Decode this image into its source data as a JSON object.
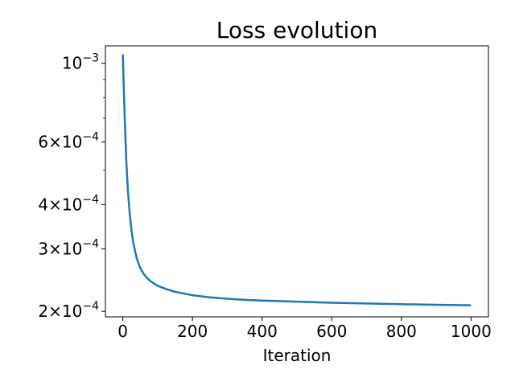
{
  "chart_data": {
    "type": "line",
    "title": "Loss evolution",
    "xlabel": "Iteration",
    "ylabel": "",
    "x_scale": "linear",
    "y_scale": "log",
    "xlim": [
      -50,
      1050
    ],
    "ylim": [
      0.000193,
      0.00112
    ],
    "grid": false,
    "x_ticks": [
      {
        "value": 0,
        "label": "0"
      },
      {
        "value": 200,
        "label": "200"
      },
      {
        "value": 400,
        "label": "400"
      },
      {
        "value": 600,
        "label": "600"
      },
      {
        "value": 800,
        "label": "800"
      },
      {
        "value": 1000,
        "label": "1000"
      }
    ],
    "y_ticks": [
      {
        "value": 0.0002,
        "mant": "2",
        "exp": "−4"
      },
      {
        "value": 0.0003,
        "mant": "3",
        "exp": "−4"
      },
      {
        "value": 0.0004,
        "mant": "4",
        "exp": "−4"
      },
      {
        "value": 0.0006,
        "mant": "6",
        "exp": "−4"
      },
      {
        "value": 0.001,
        "mant": "",
        "exp": "−3"
      }
    ],
    "y_minor_ticks": [
      0.0005,
      0.0007,
      0.0008,
      0.0009
    ],
    "series": [
      {
        "color": "#1f77b4",
        "x": [
          0,
          5,
          10,
          15,
          20,
          25,
          30,
          40,
          50,
          60,
          70,
          80,
          100,
          125,
          150,
          200,
          250,
          300,
          350,
          400,
          500,
          600,
          700,
          800,
          900,
          1000
        ],
        "y": [
          0.00106,
          0.00072,
          0.00053,
          0.000432,
          0.000375,
          0.000338,
          0.000312,
          0.000282,
          0.000265,
          0.000255,
          0.000248,
          0.000243,
          0.000236,
          0.000231,
          0.000227,
          0.000222,
          0.000219,
          0.000217,
          0.0002155,
          0.0002145,
          0.000213,
          0.0002115,
          0.0002105,
          0.0002095,
          0.0002087,
          0.000208
        ]
      }
    ]
  }
}
